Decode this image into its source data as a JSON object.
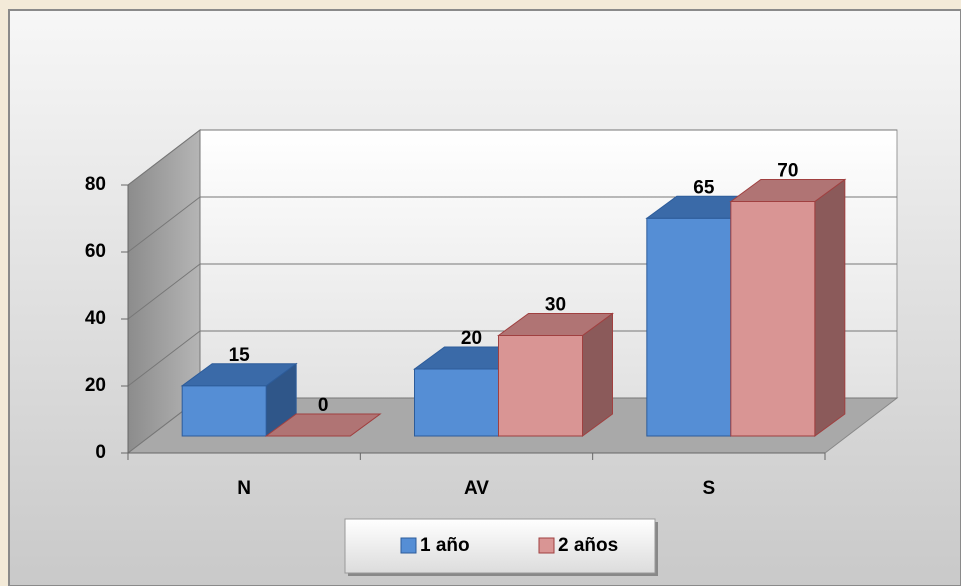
{
  "chart_data": {
    "type": "bar3d",
    "categories": [
      "N",
      "AV",
      "S"
    ],
    "series": [
      {
        "name": "1 año",
        "color": "#558ed5",
        "values": [
          15,
          20,
          65
        ]
      },
      {
        "name": "2 años",
        "color": "#d99594",
        "values": [
          0,
          30,
          70
        ]
      }
    ],
    "ylim": [
      0,
      80
    ],
    "yticks": [
      0,
      20,
      40,
      60,
      80
    ],
    "grid": true,
    "legend": "bottom"
  }
}
